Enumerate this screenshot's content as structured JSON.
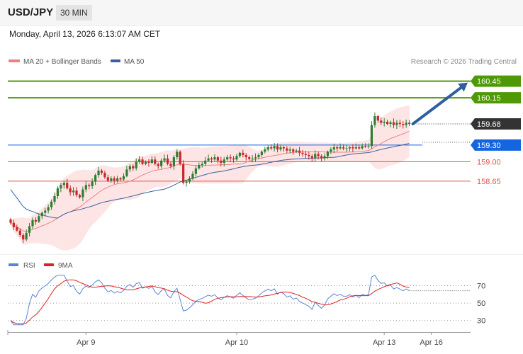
{
  "header": {
    "symbol": "USD/JPY",
    "interval": "30 MIN",
    "datetime": "Monday, April 13, 2026 6:13:07 AM CET"
  },
  "colors": {
    "resistance": "#4e9a06",
    "support": "#e05252",
    "current": "#333333",
    "pivot": "#1565e0",
    "ma20": "#f08080",
    "bands_fill": "#fde0e0",
    "ma50": "#3a5fa0",
    "arrow": "#2f5f9e",
    "candle_up": "#2e7d32",
    "candle_down": "#c62828",
    "rsi": "#5b84d6",
    "rsi_ma": "#e02020"
  },
  "chart_data": [
    {
      "type": "candlestick",
      "legend": [
        {
          "name": "MA 20 + Bollinger Bands",
          "icon": "legend-swatch-ma20",
          "color": "#f08080"
        },
        {
          "name": "MA 50",
          "icon": "legend-swatch-ma50",
          "color": "#3a5fa0"
        }
      ],
      "credit": "Research © 2026 Trading Central",
      "ylim": [
        157.45,
        160.7
      ],
      "levels": [
        {
          "value": 160.45,
          "label": "160.45",
          "role": "resistance"
        },
        {
          "value": 160.15,
          "label": "160.15",
          "role": "resistance"
        },
        {
          "value": 159.68,
          "label": "159.68",
          "role": "current"
        },
        {
          "value": 159.3,
          "label": "159.30",
          "role": "pivot"
        },
        {
          "value": 159.0,
          "label": "159.00",
          "role": "support"
        },
        {
          "value": 158.65,
          "label": "158.65",
          "role": "support"
        }
      ],
      "closes": [
        157.9,
        157.82,
        157.76,
        157.68,
        157.6,
        157.72,
        157.84,
        157.95,
        157.92,
        158.02,
        158.08,
        158.12,
        158.18,
        158.28,
        158.38,
        158.52,
        158.58,
        158.62,
        158.52,
        158.45,
        158.48,
        158.4,
        158.36,
        158.5,
        158.58,
        158.56,
        158.64,
        158.76,
        158.84,
        158.8,
        158.72,
        158.66,
        158.7,
        158.66,
        158.7,
        158.68,
        158.74,
        158.86,
        158.92,
        158.88,
        159.0,
        159.04,
        158.96,
        159.0,
        158.98,
        159.04,
        158.96,
        158.92,
        159.02,
        159.06,
        158.96,
        158.92,
        159.08,
        159.18,
        158.96,
        158.62,
        158.64,
        158.7,
        158.78,
        158.88,
        158.94,
        158.96,
        159.02,
        159.06,
        159.04,
        159.08,
        159.02,
        158.98,
        159.04,
        159.08,
        159.06,
        159.04,
        159.1,
        159.16,
        159.12,
        159.08,
        159.05,
        159.06,
        159.08,
        159.12,
        159.18,
        159.22,
        159.26,
        159.24,
        159.28,
        159.22,
        159.26,
        159.24,
        159.2,
        159.22,
        159.18,
        159.2,
        159.16,
        159.14,
        159.12,
        159.1,
        159.06,
        159.14,
        159.1,
        159.06,
        159.1,
        159.18,
        159.22,
        159.26,
        159.24,
        159.26,
        159.24,
        159.24,
        159.26,
        159.24,
        159.26,
        159.24,
        159.28,
        159.27,
        159.28,
        159.66,
        159.82,
        159.74,
        159.7,
        159.72,
        159.68,
        159.71,
        159.66,
        159.7,
        159.68,
        159.66,
        159.7,
        159.68
      ],
      "x_ticks": [
        {
          "label": "Apr 9",
          "index": 24
        },
        {
          "label": "Apr 10",
          "index": 72
        },
        {
          "label": "Apr 13",
          "index": 119
        },
        {
          "label": "Apr 16",
          "index": 134
        }
      ],
      "forecast": {
        "from": 159.68,
        "to": 160.45,
        "direction": "up"
      }
    },
    {
      "type": "line",
      "legend": [
        {
          "name": "RSI",
          "icon": "legend-swatch-rsi",
          "color": "#5b84d6"
        },
        {
          "name": "9MA",
          "icon": "legend-swatch-rsi-ma",
          "color": "#e02020"
        }
      ],
      "ylim": [
        20,
        85
      ],
      "ticks": [
        {
          "value": 70,
          "label": "70"
        },
        {
          "value": 50,
          "label": "50"
        },
        {
          "value": 30,
          "label": "30"
        }
      ]
    }
  ]
}
